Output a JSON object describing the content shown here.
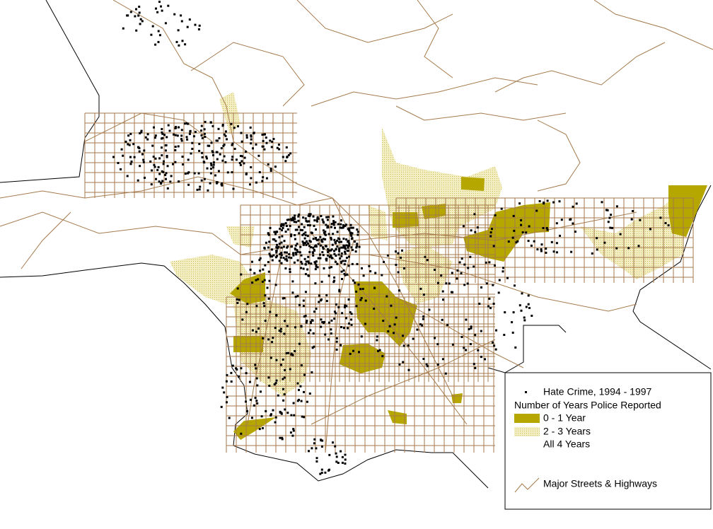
{
  "legend": {
    "items": [
      "Hate Crime, 1994 - 1997",
      "Number of Years Police Reported",
      "0 - 1 Year",
      "2 - 3 Years",
      "All 4 Years",
      "Major Streets & Highways"
    ]
  }
}
